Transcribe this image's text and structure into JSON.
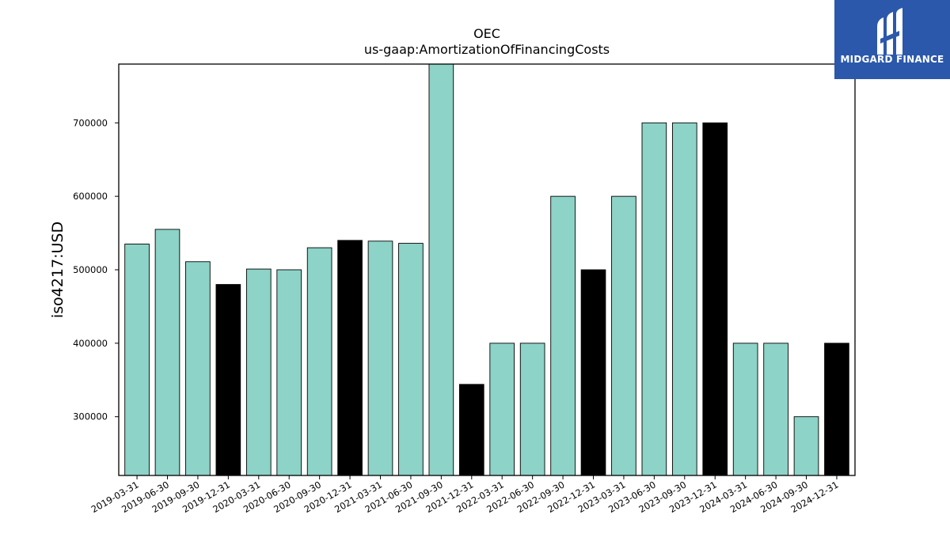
{
  "logo": {
    "text": "MIDGARD FINANCE",
    "icon": "midgard-logo-mark",
    "background": "#2b58ab"
  },
  "chart_data": {
    "type": "bar",
    "title": "OEC",
    "subtitle": "us-gaap:AmortizationOfFinancingCosts",
    "xlabel": "",
    "ylabel": "iso4217:USD",
    "ylim": [
      220000,
      780000
    ],
    "yticks": [
      300000,
      400000,
      500000,
      600000,
      700000
    ],
    "grid": false,
    "colors": {
      "quarter": "#8dd3c7",
      "year_end": "#000000",
      "edge": "#000000"
    },
    "categories": [
      "2019-03-31",
      "2019-06-30",
      "2019-09-30",
      "2019-12-31",
      "2020-03-31",
      "2020-06-30",
      "2020-09-30",
      "2020-12-31",
      "2021-03-31",
      "2021-06-30",
      "2021-09-30",
      "2021-12-31",
      "2022-03-31",
      "2022-06-30",
      "2022-09-30",
      "2022-12-31",
      "2023-03-31",
      "2023-06-30",
      "2023-09-30",
      "2023-12-31",
      "2024-03-31",
      "2024-06-30",
      "2024-09-30",
      "2024-12-31"
    ],
    "values": [
      535000,
      555000,
      511000,
      480000,
      501000,
      500000,
      530000,
      540000,
      539000,
      536000,
      780000,
      344000,
      400000,
      400000,
      600000,
      500000,
      600000,
      700000,
      700000,
      700000,
      400000,
      400000,
      300000,
      400000
    ],
    "year_end": [
      false,
      false,
      false,
      true,
      false,
      false,
      false,
      true,
      false,
      false,
      false,
      true,
      false,
      false,
      false,
      true,
      false,
      false,
      false,
      true,
      false,
      false,
      false,
      true
    ]
  }
}
